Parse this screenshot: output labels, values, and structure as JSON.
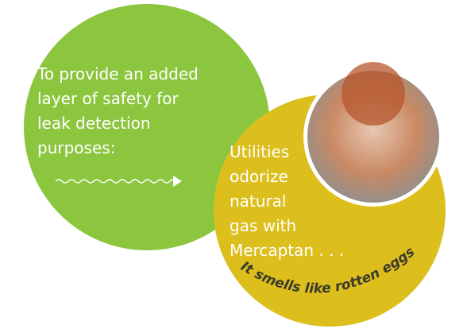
{
  "left_bubble": {
    "lines": [
      "To provide an added",
      "layer of safety for",
      "leak detection",
      "purposes:"
    ]
  },
  "right_bubble": {
    "lines": [
      "Utilities",
      "odorize",
      "natural",
      "gas with",
      "Mercaptan . . ."
    ]
  },
  "curved_caption": "It smells like rotten eggs"
}
